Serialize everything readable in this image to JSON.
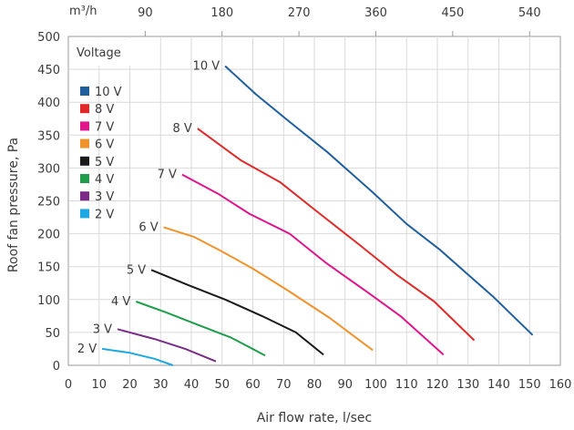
{
  "chart_data": {
    "type": "line",
    "xlabel": "Air flow rate, l/sec",
    "ylabel": "Roof fan pressure, Pa",
    "top_axis_unit": "m³/h",
    "legend_title": "Voltage",
    "legend_position": "top-left",
    "grid": true,
    "xlim": [
      0,
      160
    ],
    "ylim": [
      0,
      500
    ],
    "x_ticks": [
      "0",
      "10",
      "20",
      "30",
      "40",
      "50",
      "60",
      "70",
      "80",
      "90",
      "100",
      "110",
      "120",
      "130",
      "140",
      "150",
      "160"
    ],
    "y_ticks": [
      "0",
      "50",
      "100",
      "150",
      "200",
      "250",
      "300",
      "350",
      "400",
      "450",
      "500"
    ],
    "top_ticks": [
      {
        "value": 90,
        "label": "90"
      },
      {
        "value": 180,
        "label": "180"
      },
      {
        "value": 270,
        "label": "270"
      },
      {
        "value": 360,
        "label": "360"
      },
      {
        "value": 450,
        "label": "450"
      },
      {
        "value": 540,
        "label": "540"
      }
    ],
    "series": [
      {
        "name": "10 V",
        "color": "#1f5f9e",
        "points": [
          [
            51,
            455
          ],
          [
            61,
            412
          ],
          [
            72,
            370
          ],
          [
            84,
            325
          ],
          [
            99,
            263
          ],
          [
            110,
            215
          ],
          [
            121,
            175
          ],
          [
            129,
            142
          ],
          [
            138,
            105
          ],
          [
            151,
            46
          ]
        ]
      },
      {
        "name": "8 V",
        "color": "#e02a2a",
        "points": [
          [
            42,
            360
          ],
          [
            56,
            312
          ],
          [
            69,
            278
          ],
          [
            80,
            237
          ],
          [
            95,
            182
          ],
          [
            107,
            137
          ],
          [
            119,
            97
          ],
          [
            132,
            38
          ]
        ]
      },
      {
        "name": "7 V",
        "color": "#e0158c",
        "points": [
          [
            37,
            290
          ],
          [
            49,
            260
          ],
          [
            59,
            230
          ],
          [
            72,
            200
          ],
          [
            84,
            155
          ],
          [
            97,
            112
          ],
          [
            108,
            75
          ],
          [
            122,
            16
          ]
        ]
      },
      {
        "name": "6 V",
        "color": "#f0922a",
        "points": [
          [
            31,
            210
          ],
          [
            41,
            195
          ],
          [
            50,
            173
          ],
          [
            60,
            147
          ],
          [
            71,
            115
          ],
          [
            85,
            72
          ],
          [
            99,
            23
          ]
        ]
      },
      {
        "name": "5 V",
        "color": "#1a1a1a",
        "points": [
          [
            27,
            145
          ],
          [
            39,
            122
          ],
          [
            51,
            100
          ],
          [
            63,
            75
          ],
          [
            74,
            50
          ],
          [
            83,
            16
          ]
        ]
      },
      {
        "name": "4 V",
        "color": "#1e9e4a",
        "points": [
          [
            22,
            97
          ],
          [
            32,
            80
          ],
          [
            43,
            60
          ],
          [
            53,
            42
          ],
          [
            64,
            15
          ]
        ]
      },
      {
        "name": "3 V",
        "color": "#7a2c88",
        "points": [
          [
            16,
            55
          ],
          [
            28,
            40
          ],
          [
            38,
            25
          ],
          [
            48,
            6
          ]
        ]
      },
      {
        "name": "2 V",
        "color": "#1ca8e0",
        "points": [
          [
            11,
            25
          ],
          [
            20,
            19
          ],
          [
            28,
            10
          ],
          [
            34,
            0
          ]
        ]
      }
    ]
  }
}
